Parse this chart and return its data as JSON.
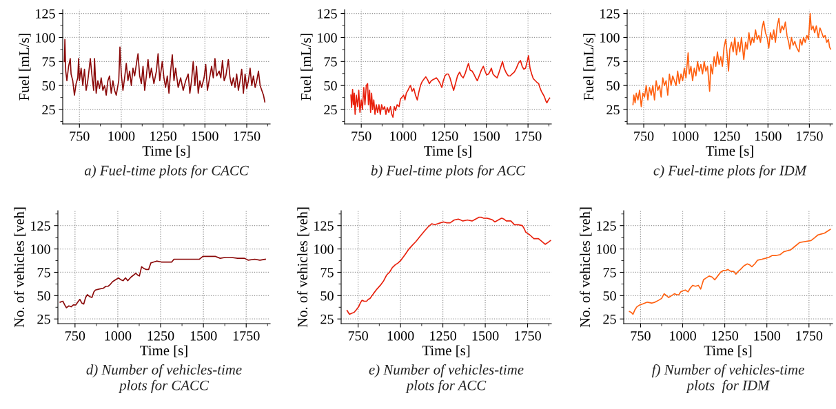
{
  "chart_data": [
    {
      "type": "line",
      "xlabel": "Time [s]",
      "ylabel": "Fuel [mL/s]",
      "annotations": [
        "a) Fuel-time plots for CACC"
      ],
      "xlim": [
        650,
        1890
      ],
      "ylim": [
        10,
        129
      ],
      "xticks": [
        750,
        1000,
        1250,
        1500,
        1750
      ],
      "yticks": [
        25,
        50,
        75,
        100,
        125
      ],
      "grid": true,
      "x": [
        660,
        663,
        668,
        675,
        685,
        695,
        700,
        710,
        720,
        730,
        740,
        745,
        750,
        760,
        770,
        780,
        790,
        800,
        815,
        825,
        835,
        840,
        850,
        860,
        870,
        880,
        890,
        900,
        910,
        920,
        930,
        940,
        950,
        960,
        970,
        985,
        992,
        1000,
        1010,
        1020,
        1030,
        1040,
        1050,
        1060,
        1070,
        1080,
        1090,
        1100,
        1110,
        1120,
        1130,
        1140,
        1150,
        1160,
        1170,
        1180,
        1195,
        1210,
        1220,
        1230,
        1245,
        1255,
        1265,
        1275,
        1285,
        1295,
        1305,
        1315,
        1325,
        1340,
        1355,
        1370,
        1385,
        1400,
        1410,
        1420,
        1430,
        1440,
        1450,
        1460,
        1470,
        1480,
        1495,
        1505,
        1515,
        1525,
        1540,
        1550,
        1560,
        1570,
        1585,
        1595,
        1605,
        1615,
        1625,
        1640,
        1650,
        1660,
        1670,
        1680,
        1690,
        1700,
        1710,
        1720,
        1730,
        1740,
        1750,
        1760,
        1770,
        1780,
        1790,
        1800,
        1810,
        1820,
        1830,
        1840,
        1850,
        1858
      ],
      "series": [
        {
          "color": "#8b0a0a",
          "values": [
            75,
            98,
            65,
            55,
            70,
            78,
            62,
            55,
            40,
            52,
            58,
            78,
            55,
            68,
            50,
            67,
            45,
            55,
            78,
            60,
            45,
            78,
            42,
            55,
            47,
            58,
            45,
            50,
            40,
            55,
            60,
            42,
            55,
            45,
            40,
            55,
            90,
            62,
            45,
            58,
            73,
            55,
            65,
            50,
            68,
            60,
            72,
            83,
            60,
            52,
            70,
            45,
            60,
            77,
            58,
            68,
            52,
            65,
            83,
            55,
            75,
            58,
            48,
            60,
            42,
            65,
            82,
            55,
            68,
            48,
            58,
            45,
            55,
            62,
            42,
            55,
            75,
            50,
            70,
            42,
            55,
            48,
            58,
            72,
            45,
            55,
            70,
            58,
            78,
            60,
            65,
            58,
            76,
            55,
            60,
            77,
            58,
            50,
            58,
            48,
            62,
            45,
            55,
            67,
            42,
            62,
            47,
            55,
            68,
            50,
            60,
            48,
            55,
            65,
            50,
            45,
            40,
            33
          ]
        }
      ]
    },
    {
      "type": "line",
      "xlabel": "Time [s]",
      "ylabel": "Fuel [mL/s]",
      "annotations": [
        "b) Fuel-time plots for ACC"
      ],
      "xlim": [
        650,
        1890
      ],
      "ylim": [
        10,
        129
      ],
      "xticks": [
        750,
        1000,
        1250,
        1500,
        1750
      ],
      "yticks": [
        25,
        50,
        75,
        100,
        125
      ],
      "grid": true,
      "x": [
        688,
        692,
        698,
        703,
        708,
        713,
        720,
        728,
        735,
        742,
        750,
        757,
        765,
        772,
        780,
        788,
        793,
        800,
        806,
        812,
        818,
        825,
        832,
        840,
        848,
        856,
        864,
        872,
        880,
        890,
        898,
        906,
        915,
        925,
        933,
        940,
        948,
        956,
        965,
        977,
        985,
        995,
        1004,
        1012,
        1020,
        1030,
        1038,
        1045,
        1055,
        1065,
        1075,
        1086,
        1095,
        1105,
        1115,
        1127,
        1137,
        1148,
        1158,
        1170,
        1180,
        1190,
        1200,
        1210,
        1220,
        1233,
        1242,
        1252,
        1262,
        1272,
        1282,
        1295,
        1304,
        1315,
        1327,
        1340,
        1350,
        1361,
        1372,
        1383,
        1393,
        1403,
        1415,
        1425,
        1436,
        1446,
        1457,
        1470,
        1482,
        1492,
        1502,
        1513,
        1523,
        1530,
        1540,
        1550,
        1565,
        1575,
        1588,
        1597,
        1607,
        1620,
        1632,
        1643,
        1655,
        1668,
        1680,
        1692,
        1705,
        1715,
        1725,
        1735,
        1745,
        1753,
        1762,
        1772,
        1782,
        1794,
        1805,
        1814,
        1821,
        1830,
        1840,
        1849,
        1857,
        1863,
        1872,
        1880
      ],
      "series": [
        {
          "color": "#e8200c",
          "values": [
            40,
            27,
            46,
            30,
            42,
            20,
            40,
            28,
            45,
            22,
            35,
            25,
            48,
            30,
            50,
            52,
            30,
            45,
            22,
            42,
            25,
            35,
            20,
            30,
            22,
            30,
            20,
            30,
            25,
            28,
            20,
            27,
            22,
            28,
            20,
            17,
            28,
            24,
            30,
            28,
            36,
            38,
            40,
            35,
            42,
            45,
            48,
            50,
            44,
            47,
            40,
            35,
            43,
            50,
            54,
            57,
            59,
            56,
            52,
            55,
            56,
            57,
            58,
            56,
            53,
            48,
            55,
            60,
            62,
            62,
            58,
            50,
            45,
            52,
            60,
            64,
            60,
            58,
            62,
            68,
            73,
            66,
            65,
            62,
            58,
            55,
            60,
            66,
            70,
            65,
            61,
            62,
            65,
            68,
            62,
            60,
            58,
            63,
            70,
            75,
            68,
            63,
            60,
            60,
            62,
            64,
            68,
            73,
            76,
            70,
            67,
            68,
            75,
            81,
            68,
            62,
            57,
            55,
            53,
            52,
            48,
            44,
            41,
            38,
            34,
            32,
            35,
            37
          ]
        }
      ]
    },
    {
      "type": "line",
      "xlabel": "Time [s]",
      "ylabel": "Fuel [mL/s]",
      "annotations": [
        "c) Fuel-time plots for IDM"
      ],
      "xlim": [
        650,
        1890
      ],
      "ylim": [
        10,
        129
      ],
      "xticks": [
        750,
        1000,
        1250,
        1500,
        1750
      ],
      "yticks": [
        25,
        50,
        75,
        100,
        125
      ],
      "grid": true,
      "x": [
        685,
        690,
        698,
        705,
        715,
        725,
        735,
        745,
        755,
        765,
        775,
        785,
        795,
        805,
        815,
        825,
        835,
        845,
        855,
        865,
        875,
        885,
        895,
        905,
        915,
        925,
        935,
        945,
        955,
        965,
        975,
        985,
        995,
        1005,
        1018,
        1025,
        1035,
        1045,
        1055,
        1065,
        1075,
        1085,
        1095,
        1105,
        1115,
        1125,
        1135,
        1148,
        1155,
        1165,
        1175,
        1185,
        1195,
        1205,
        1215,
        1225,
        1235,
        1245,
        1255,
        1262,
        1270,
        1280,
        1290,
        1300,
        1310,
        1320,
        1330,
        1340,
        1354,
        1365,
        1375,
        1385,
        1395,
        1405,
        1415,
        1425,
        1435,
        1445,
        1455,
        1465,
        1474,
        1485,
        1495,
        1505,
        1515,
        1525,
        1535,
        1545,
        1556,
        1566,
        1575,
        1585,
        1595,
        1605,
        1615,
        1625,
        1632,
        1642,
        1652,
        1662,
        1672,
        1687,
        1695,
        1705,
        1715,
        1725,
        1735,
        1745,
        1755,
        1762,
        1772,
        1782,
        1792,
        1804,
        1814,
        1825,
        1835,
        1845,
        1855,
        1865,
        1872,
        1878
      ],
      "series": [
        {
          "color": "#ff6010",
          "values": [
            30,
            40,
            32,
            42,
            35,
            45,
            28,
            42,
            38,
            50,
            35,
            48,
            40,
            50,
            35,
            55,
            45,
            50,
            38,
            58,
            50,
            55,
            40,
            62,
            50,
            60,
            55,
            50,
            65,
            52,
            62,
            55,
            68,
            58,
            84,
            62,
            70,
            55,
            68,
            60,
            75,
            65,
            72,
            62,
            75,
            65,
            70,
            44,
            72,
            62,
            80,
            70,
            85,
            72,
            80,
            70,
            90,
            98,
            80,
            65,
            88,
            95,
            85,
            100,
            82,
            95,
            85,
            100,
            77,
            95,
            88,
            105,
            92,
            100,
            95,
            108,
            98,
            102,
            95,
            110,
            117,
            105,
            100,
            89,
            105,
            98,
            108,
            95,
            112,
            120,
            105,
            112,
            108,
            116,
            102,
            95,
            88,
            100,
            92,
            96,
            90,
            85,
            98,
            92,
            100,
            95,
            102,
            98,
            125,
            108,
            112,
            105,
            112,
            100,
            110,
            105,
            100,
            102,
            95,
            98,
            90,
            88
          ]
        }
      ]
    },
    {
      "type": "line",
      "xlabel": "Time [s]",
      "ylabel": "No. of vehicles [veh]",
      "annotations": [
        "d) Number of vehicles-time\nplots for CACC"
      ],
      "xlim": [
        650,
        1890
      ],
      "ylim": [
        20,
        141
      ],
      "xticks": [
        750,
        1000,
        1250,
        1500,
        1750
      ],
      "yticks": [
        25,
        50,
        75,
        100,
        125
      ],
      "grid": true,
      "x": [
        663,
        679,
        690,
        700,
        714,
        727,
        740,
        754,
        766,
        778,
        790,
        801,
        812,
        822,
        835,
        849,
        860,
        869,
        890,
        916,
        930,
        943,
        956,
        970,
        987,
        1004,
        1018,
        1031,
        1045,
        1058,
        1078,
        1092,
        1105,
        1116,
        1126,
        1139,
        1153,
        1166,
        1180,
        1193,
        1210,
        1227,
        1254,
        1285,
        1315,
        1328,
        1360,
        1389,
        1430,
        1477,
        1497,
        1530,
        1571,
        1598,
        1630,
        1659,
        1700,
        1740,
        1761,
        1800,
        1830,
        1862
      ],
      "series": [
        {
          "color": "#8b0a0a",
          "values": [
            43,
            44,
            40,
            37,
            39,
            38,
            40,
            40,
            43,
            46,
            42,
            41,
            48,
            51,
            49,
            48,
            54,
            56,
            57,
            58,
            60,
            60,
            62,
            65,
            67,
            69,
            67,
            66,
            69,
            66,
            70,
            72,
            74,
            72,
            71,
            81,
            79,
            78,
            78,
            85,
            86,
            87,
            86,
            86,
            86,
            89,
            89,
            89,
            89,
            89,
            92,
            92,
            92,
            90,
            91,
            91,
            90,
            90,
            88,
            89,
            88,
            89
          ]
        }
      ]
    },
    {
      "type": "line",
      "xlabel": "Time [s]",
      "ylabel": "No. of vehicles [veh]",
      "annotations": [
        "e) Number of vehicles-time\nplots for ACC"
      ],
      "xlim": [
        650,
        1890
      ],
      "ylim": [
        20,
        141
      ],
      "xticks": [
        750,
        1000,
        1250,
        1500,
        1750
      ],
      "yticks": [
        25,
        50,
        75,
        100,
        125
      ],
      "grid": true,
      "x": [
        685,
        699,
        712,
        726,
        740,
        753,
        763,
        773,
        786,
        800,
        810,
        820,
        840,
        861,
        881,
        901,
        918,
        935,
        952,
        969,
        986,
        1003,
        1027,
        1050,
        1070,
        1091,
        1118,
        1145,
        1165,
        1185,
        1202,
        1219,
        1236,
        1253,
        1273,
        1293,
        1317,
        1341,
        1355,
        1368,
        1395,
        1422,
        1443,
        1463,
        1476,
        1489,
        1510,
        1530,
        1544,
        1557,
        1577,
        1597,
        1610,
        1624,
        1637,
        1651,
        1662,
        1672,
        1695,
        1719,
        1729,
        1739,
        1763,
        1787,
        1800,
        1814,
        1834,
        1854,
        1870,
        1885
      ],
      "series": [
        {
          "color": "#e8200c",
          "values": [
            34,
            30,
            31,
            32,
            35,
            38,
            42,
            45,
            44,
            44,
            46,
            47,
            52,
            57,
            61,
            66,
            72,
            75,
            80,
            83,
            85,
            88,
            94,
            100,
            104,
            108,
            114,
            120,
            124,
            127,
            126,
            127,
            128,
            129,
            128,
            128,
            131,
            132,
            131,
            130,
            131,
            130,
            132,
            134,
            134,
            133,
            133,
            132,
            131,
            129,
            131,
            133,
            132,
            130,
            130,
            130,
            128,
            126,
            126,
            125,
            122,
            118,
            115,
            111,
            111,
            111,
            108,
            105,
            107,
            109
          ]
        }
      ]
    },
    {
      "type": "line",
      "xlabel": "Time [s]",
      "ylabel": "No. of vehicles [veh]",
      "annotations": [
        "f) Number of vehicles-time\nplots  for IDM"
      ],
      "xlim": [
        650,
        1890
      ],
      "ylim": [
        20,
        141
      ],
      "xticks": [
        750,
        1000,
        1250,
        1500,
        1750
      ],
      "yticks": [
        25,
        50,
        75,
        100,
        125
      ],
      "grid": true,
      "x": [
        684,
        695,
        705,
        717,
        728,
        745,
        762,
        790,
        816,
        836,
        857,
        875,
        890,
        904,
        917,
        934,
        951,
        965,
        978,
        988,
        999,
        1016,
        1032,
        1045,
        1059,
        1076,
        1093,
        1107,
        1124,
        1140,
        1157,
        1174,
        1191,
        1208,
        1225,
        1242,
        1256,
        1269,
        1286,
        1303,
        1316,
        1330,
        1343,
        1364,
        1384,
        1398,
        1411,
        1428,
        1445,
        1470,
        1492,
        1512,
        1532,
        1556,
        1580,
        1600,
        1620,
        1641,
        1668,
        1695,
        1728,
        1762,
        1783,
        1803,
        1823,
        1843,
        1860,
        1877
      ],
      "series": [
        {
          "color": "#ff6010",
          "values": [
            33,
            32,
            30,
            35,
            38,
            40,
            41,
            43,
            42,
            43,
            45,
            47,
            52,
            50,
            48,
            50,
            52,
            51,
            51,
            54,
            55,
            56,
            54,
            58,
            61,
            60,
            61,
            57,
            67,
            69,
            71,
            70,
            67,
            71,
            75,
            77,
            77,
            78,
            76,
            76,
            73,
            76,
            78,
            82,
            84,
            83,
            81,
            84,
            88,
            89,
            90,
            91,
            93,
            93,
            94,
            97,
            98,
            99,
            103,
            107,
            108,
            109,
            112,
            115,
            116,
            117,
            119,
            121
          ]
        }
      ]
    }
  ]
}
